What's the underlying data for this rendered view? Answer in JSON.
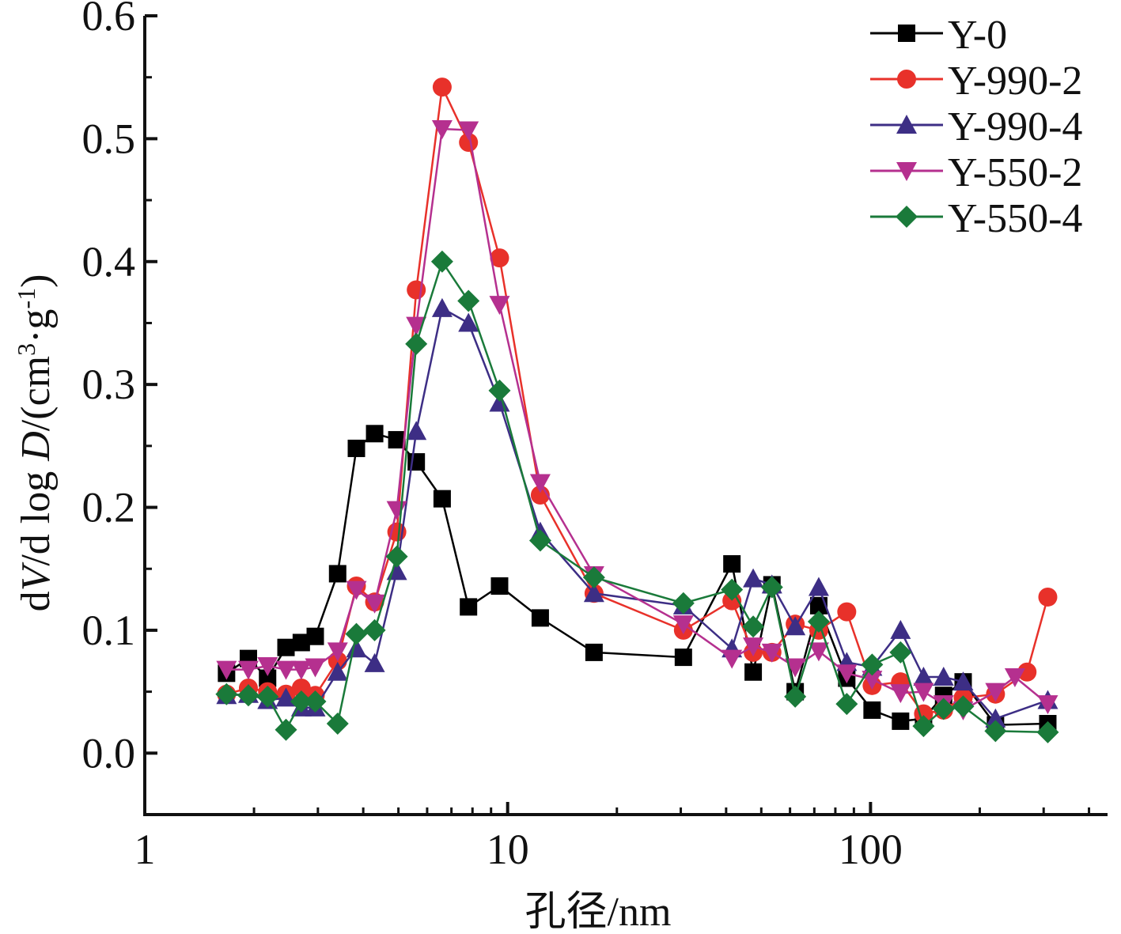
{
  "chart_data": {
    "type": "line",
    "xlabel": "孔径/nm",
    "ylabel": "dV/d log D/(cm³·g⁻¹)",
    "ylabel_parts": {
      "prefix": "d",
      "V": "V",
      "mid": "/d log ",
      "D": "D",
      "unit_open": "/(cm",
      "sup3": "3",
      "dot_g": "·g",
      "sup_minus1": "-1",
      "close": ")"
    },
    "x_scale": "log",
    "xlim": [
      1,
      450
    ],
    "ylim": [
      -0.05,
      0.6
    ],
    "x_ticks": [
      1,
      10,
      100
    ],
    "x_tick_labels": [
      "1",
      "10",
      "100"
    ],
    "y_ticks": [
      0.0,
      0.1,
      0.2,
      0.3,
      0.4,
      0.5,
      0.6
    ],
    "y_tick_labels": [
      "0.0",
      "0.1",
      "0.2",
      "0.3",
      "0.4",
      "0.5",
      "0.6"
    ],
    "grid": false,
    "legend_position": "top-right",
    "series": [
      {
        "name": "Y-0",
        "color": "#000000",
        "marker": "square",
        "points": [
          [
            1.68,
            0.065
          ],
          [
            1.93,
            0.077
          ],
          [
            2.18,
            0.061
          ],
          [
            2.45,
            0.086
          ],
          [
            2.7,
            0.09
          ],
          [
            2.95,
            0.095
          ],
          [
            3.4,
            0.146
          ],
          [
            3.83,
            0.248
          ],
          [
            4.3,
            0.26
          ],
          [
            4.95,
            0.255
          ],
          [
            5.6,
            0.237
          ],
          [
            6.6,
            0.207
          ],
          [
            7.8,
            0.119
          ],
          [
            9.5,
            0.136
          ],
          [
            12.3,
            0.11
          ],
          [
            17.3,
            0.082
          ],
          [
            30.5,
            0.078
          ],
          [
            41.5,
            0.154
          ],
          [
            47.5,
            0.066
          ],
          [
            53.5,
            0.137
          ],
          [
            62,
            0.05
          ],
          [
            72,
            0.12
          ],
          [
            86,
            0.061
          ],
          [
            101,
            0.035
          ],
          [
            121,
            0.026
          ],
          [
            140,
            0.028
          ],
          [
            159,
            0.047
          ],
          [
            180,
            0.058
          ],
          [
            221,
            0.023
          ],
          [
            308,
            0.024
          ]
        ]
      },
      {
        "name": "Y-990-2",
        "color": "#e8312a",
        "marker": "circle",
        "points": [
          [
            1.68,
            0.048
          ],
          [
            1.93,
            0.053
          ],
          [
            2.18,
            0.05
          ],
          [
            2.45,
            0.048
          ],
          [
            2.7,
            0.053
          ],
          [
            2.95,
            0.047
          ],
          [
            3.4,
            0.075
          ],
          [
            3.83,
            0.136
          ],
          [
            4.3,
            0.123
          ],
          [
            4.95,
            0.18
          ],
          [
            5.6,
            0.377
          ],
          [
            6.6,
            0.542
          ],
          [
            7.8,
            0.497
          ],
          [
            9.5,
            0.403
          ],
          [
            12.3,
            0.21
          ],
          [
            17.3,
            0.13
          ],
          [
            30.5,
            0.1
          ],
          [
            41.5,
            0.124
          ],
          [
            47.5,
            0.082
          ],
          [
            53.5,
            0.082
          ],
          [
            62,
            0.105
          ],
          [
            72,
            0.1
          ],
          [
            86,
            0.115
          ],
          [
            101,
            0.055
          ],
          [
            121,
            0.058
          ],
          [
            140,
            0.032
          ],
          [
            159,
            0.035
          ],
          [
            180,
            0.045
          ],
          [
            221,
            0.048
          ],
          [
            270,
            0.066
          ],
          [
            308,
            0.127
          ]
        ]
      },
      {
        "name": "Y-990-4",
        "color": "#3d2e85",
        "marker": "triangle-up",
        "points": [
          [
            1.68,
            0.047
          ],
          [
            1.93,
            0.048
          ],
          [
            2.18,
            0.043
          ],
          [
            2.45,
            0.045
          ],
          [
            2.7,
            0.037
          ],
          [
            2.95,
            0.037
          ],
          [
            3.4,
            0.066
          ],
          [
            3.83,
            0.085
          ],
          [
            4.3,
            0.073
          ],
          [
            4.95,
            0.148
          ],
          [
            5.6,
            0.262
          ],
          [
            6.6,
            0.362
          ],
          [
            7.8,
            0.35
          ],
          [
            9.5,
            0.285
          ],
          [
            12.3,
            0.18
          ],
          [
            17.3,
            0.13
          ],
          [
            30.5,
            0.12
          ],
          [
            41.5,
            0.085
          ],
          [
            47.5,
            0.142
          ],
          [
            53.5,
            0.137
          ],
          [
            62,
            0.103
          ],
          [
            72,
            0.135
          ],
          [
            86,
            0.074
          ],
          [
            101,
            0.07
          ],
          [
            121,
            0.1
          ],
          [
            140,
            0.062
          ],
          [
            159,
            0.062
          ],
          [
            180,
            0.058
          ],
          [
            221,
            0.028
          ],
          [
            308,
            0.043
          ]
        ]
      },
      {
        "name": "Y-550-2",
        "color": "#b5308f",
        "marker": "triangle-down",
        "points": [
          [
            1.68,
            0.068
          ],
          [
            1.93,
            0.068
          ],
          [
            2.18,
            0.071
          ],
          [
            2.45,
            0.068
          ],
          [
            2.7,
            0.068
          ],
          [
            2.95,
            0.07
          ],
          [
            3.4,
            0.083
          ],
          [
            3.83,
            0.133
          ],
          [
            4.3,
            0.122
          ],
          [
            4.95,
            0.198
          ],
          [
            5.6,
            0.348
          ],
          [
            6.6,
            0.508
          ],
          [
            7.8,
            0.507
          ],
          [
            9.5,
            0.365
          ],
          [
            12.3,
            0.22
          ],
          [
            17.3,
            0.145
          ],
          [
            30.5,
            0.105
          ],
          [
            41.5,
            0.077
          ],
          [
            47.5,
            0.087
          ],
          [
            53.5,
            0.082
          ],
          [
            62,
            0.07
          ],
          [
            72,
            0.083
          ],
          [
            86,
            0.065
          ],
          [
            101,
            0.06
          ],
          [
            121,
            0.049
          ],
          [
            140,
            0.05
          ],
          [
            159,
            0.04
          ],
          [
            180,
            0.035
          ],
          [
            221,
            0.05
          ],
          [
            250,
            0.062
          ],
          [
            308,
            0.04
          ]
        ]
      },
      {
        "name": "Y-550-4",
        "color": "#1a7a3a",
        "marker": "diamond",
        "points": [
          [
            1.68,
            0.048
          ],
          [
            1.93,
            0.047
          ],
          [
            2.18,
            0.046
          ],
          [
            2.45,
            0.019
          ],
          [
            2.7,
            0.042
          ],
          [
            2.95,
            0.042
          ],
          [
            3.4,
            0.024
          ],
          [
            3.83,
            0.097
          ],
          [
            4.3,
            0.1
          ],
          [
            4.95,
            0.16
          ],
          [
            5.6,
            0.333
          ],
          [
            6.6,
            0.4
          ],
          [
            7.8,
            0.368
          ],
          [
            9.5,
            0.295
          ],
          [
            12.3,
            0.173
          ],
          [
            17.3,
            0.143
          ],
          [
            30.5,
            0.122
          ],
          [
            41.5,
            0.133
          ],
          [
            47.5,
            0.103
          ],
          [
            53.5,
            0.135
          ],
          [
            62,
            0.046
          ],
          [
            72,
            0.107
          ],
          [
            86,
            0.04
          ],
          [
            101,
            0.072
          ],
          [
            121,
            0.082
          ],
          [
            140,
            0.022
          ],
          [
            159,
            0.036
          ],
          [
            180,
            0.038
          ],
          [
            221,
            0.018
          ],
          [
            308,
            0.017
          ]
        ]
      }
    ]
  }
}
